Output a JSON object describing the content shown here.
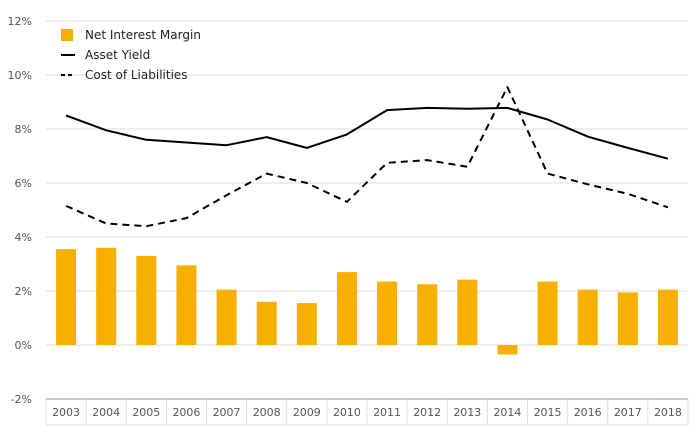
{
  "chart_data": {
    "type": "bar",
    "categories": [
      "2003",
      "2004",
      "2005",
      "2006",
      "2007",
      "2008",
      "2009",
      "2010",
      "2011",
      "2012",
      "2013",
      "2014",
      "2015",
      "2016",
      "2017",
      "2018"
    ],
    "series": [
      {
        "name": "Net Interest Margin",
        "type": "bar",
        "values": [
          3.55,
          3.6,
          3.3,
          2.95,
          2.05,
          1.6,
          1.55,
          2.7,
          2.35,
          2.25,
          2.42,
          -0.35,
          2.35,
          2.05,
          1.95,
          2.05
        ]
      },
      {
        "name": "Asset Yield",
        "type": "line",
        "style": "solid",
        "values": [
          8.5,
          7.95,
          7.6,
          7.5,
          7.4,
          7.7,
          7.3,
          7.8,
          8.7,
          8.78,
          8.75,
          8.78,
          8.35,
          7.72,
          7.3,
          6.9
        ]
      },
      {
        "name": "Cost of Liabilities",
        "type": "line",
        "style": "dashed",
        "values": [
          5.15,
          4.5,
          4.4,
          4.7,
          5.55,
          6.35,
          6.0,
          5.3,
          6.75,
          6.85,
          6.6,
          9.55,
          6.35,
          5.95,
          5.6,
          5.1
        ]
      }
    ],
    "ylim": [
      -2,
      12
    ],
    "yticks": [
      -2,
      0,
      2,
      4,
      6,
      8,
      10,
      12
    ],
    "ytick_format": "%",
    "grid": true,
    "legend_position": "top-left",
    "colors": {
      "bar": "#F7B000",
      "line": "#000000",
      "grid": "#dddddd",
      "axis": "#999999",
      "label": "#555555"
    }
  }
}
